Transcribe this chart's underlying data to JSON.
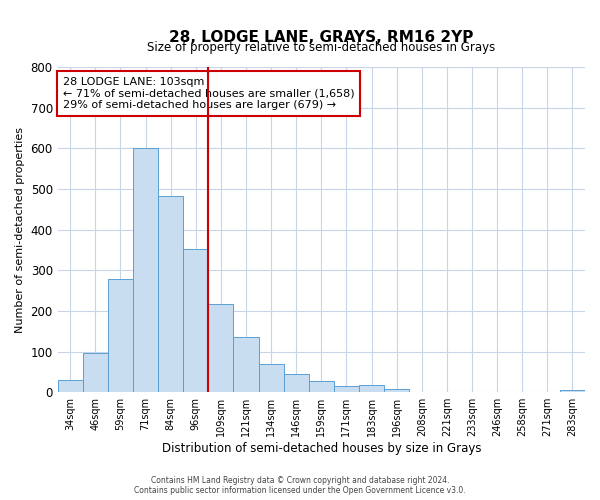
{
  "title": "28, LODGE LANE, GRAYS, RM16 2YP",
  "subtitle": "Size of property relative to semi-detached houses in Grays",
  "xlabel": "Distribution of semi-detached houses by size in Grays",
  "ylabel": "Number of semi-detached properties",
  "bar_labels": [
    "34sqm",
    "46sqm",
    "59sqm",
    "71sqm",
    "84sqm",
    "96sqm",
    "109sqm",
    "121sqm",
    "134sqm",
    "146sqm",
    "159sqm",
    "171sqm",
    "183sqm",
    "196sqm",
    "208sqm",
    "221sqm",
    "233sqm",
    "246sqm",
    "258sqm",
    "271sqm",
    "283sqm"
  ],
  "bar_values": [
    30,
    97,
    278,
    600,
    483,
    353,
    218,
    137,
    70,
    46,
    28,
    15,
    18,
    8,
    0,
    0,
    0,
    0,
    0,
    0,
    5
  ],
  "bar_color": "#c8ddf0",
  "bar_edge_color": "#5a9fd4",
  "vline_x_index": 6,
  "vline_color": "#cc0000",
  "ylim": [
    0,
    800
  ],
  "yticks": [
    0,
    100,
    200,
    300,
    400,
    500,
    600,
    700,
    800
  ],
  "annotation_title": "28 LODGE LANE: 103sqm",
  "annotation_line1": "← 71% of semi-detached houses are smaller (1,658)",
  "annotation_line2": "29% of semi-detached houses are larger (679) →",
  "annotation_box_color": "#ffffff",
  "annotation_box_edge": "#cc0000",
  "footer_line1": "Contains HM Land Registry data © Crown copyright and database right 2024.",
  "footer_line2": "Contains public sector information licensed under the Open Government Licence v3.0.",
  "background_color": "#ffffff",
  "grid_color": "#c8d4e8"
}
